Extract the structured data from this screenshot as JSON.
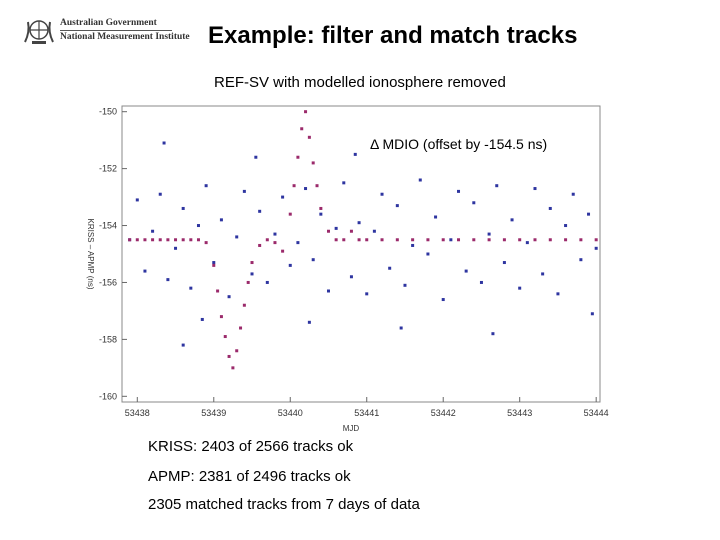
{
  "header": {
    "org_line1": "Australian Government",
    "org_line2": "National Measurement Institute",
    "title": "Example: filter and match tracks",
    "subtitle": "REF-SV with modelled ionosphere removed"
  },
  "chart_data": {
    "type": "scatter",
    "xlabel": "MJD",
    "ylabel": "KRISS – APMP (ns)",
    "annotation": "Δ MDIO (offset by -154.5 ns)",
    "xlim": [
      53437.8,
      53444.05
    ],
    "ylim": [
      -160.2,
      -149.8
    ],
    "xticks": [
      53438,
      53439,
      53440,
      53441,
      53442,
      53443,
      53444
    ],
    "xtick_labels": [
      "53438",
      "53439",
      "53440",
      "53441",
      "53442",
      "53443",
      "53444"
    ],
    "yticks": [
      -150,
      -152,
      -154,
      -156,
      -158,
      -160
    ],
    "ytick_labels": [
      "-150",
      "-152",
      "-154",
      "-156",
      "-158",
      "-160"
    ],
    "grid": false,
    "series": [
      {
        "color": "#2e35a0",
        "points": [
          [
            53437.9,
            -154.5
          ],
          [
            53438.0,
            -153.1
          ],
          [
            53438.1,
            -155.6
          ],
          [
            53438.2,
            -154.2
          ],
          [
            53438.3,
            -152.9
          ],
          [
            53438.4,
            -155.9
          ],
          [
            53438.5,
            -154.8
          ],
          [
            53438.6,
            -153.4
          ],
          [
            53438.7,
            -156.2
          ],
          [
            53438.8,
            -154.0
          ],
          [
            53438.9,
            -152.6
          ],
          [
            53439.0,
            -155.3
          ],
          [
            53439.1,
            -153.8
          ],
          [
            53439.2,
            -156.5
          ],
          [
            53439.3,
            -154.4
          ],
          [
            53439.4,
            -152.8
          ],
          [
            53439.5,
            -155.7
          ],
          [
            53439.6,
            -153.5
          ],
          [
            53439.7,
            -156.0
          ],
          [
            53439.8,
            -154.3
          ],
          [
            53439.9,
            -153.0
          ],
          [
            53440.0,
            -155.4
          ],
          [
            53440.1,
            -154.6
          ],
          [
            53440.2,
            -152.7
          ],
          [
            53440.3,
            -155.2
          ],
          [
            53440.4,
            -153.6
          ],
          [
            53440.5,
            -156.3
          ],
          [
            53440.6,
            -154.1
          ],
          [
            53440.7,
            -152.5
          ],
          [
            53440.8,
            -155.8
          ],
          [
            53440.9,
            -153.9
          ],
          [
            53441.0,
            -156.4
          ],
          [
            53441.1,
            -154.2
          ],
          [
            53441.2,
            -152.9
          ],
          [
            53441.3,
            -155.5
          ],
          [
            53441.4,
            -153.3
          ],
          [
            53441.5,
            -156.1
          ],
          [
            53441.6,
            -154.7
          ],
          [
            53441.7,
            -152.4
          ],
          [
            53441.8,
            -155.0
          ],
          [
            53441.9,
            -153.7
          ],
          [
            53442.0,
            -156.6
          ],
          [
            53442.1,
            -154.5
          ],
          [
            53442.2,
            -152.8
          ],
          [
            53442.3,
            -155.6
          ],
          [
            53442.4,
            -153.2
          ],
          [
            53442.5,
            -156.0
          ],
          [
            53442.6,
            -154.3
          ],
          [
            53442.7,
            -152.6
          ],
          [
            53442.8,
            -155.3
          ],
          [
            53442.9,
            -153.8
          ],
          [
            53443.0,
            -156.2
          ],
          [
            53443.1,
            -154.6
          ],
          [
            53443.2,
            -152.7
          ],
          [
            53443.3,
            -155.7
          ],
          [
            53443.4,
            -153.4
          ],
          [
            53443.5,
            -156.4
          ],
          [
            53443.6,
            -154.0
          ],
          [
            53443.7,
            -152.9
          ],
          [
            53443.8,
            -155.2
          ],
          [
            53443.9,
            -153.6
          ],
          [
            53444.0,
            -154.8
          ],
          [
            53438.35,
            -151.1
          ],
          [
            53438.85,
            -157.3
          ],
          [
            53439.55,
            -151.6
          ],
          [
            53440.25,
            -157.4
          ],
          [
            53440.85,
            -151.5
          ],
          [
            53441.45,
            -157.6
          ],
          [
            53442.15,
            -151.2
          ],
          [
            53442.65,
            -157.8
          ],
          [
            53443.35,
            -151.4
          ],
          [
            53443.95,
            -157.1
          ],
          [
            53438.6,
            -158.2
          ],
          [
            53441.9,
            -150.9
          ]
        ]
      },
      {
        "color": "#9b2a6b",
        "points": [
          [
            53437.9,
            -154.5
          ],
          [
            53438.0,
            -154.5
          ],
          [
            53438.1,
            -154.5
          ],
          [
            53438.2,
            -154.5
          ],
          [
            53438.3,
            -154.5
          ],
          [
            53438.4,
            -154.5
          ],
          [
            53438.5,
            -154.5
          ],
          [
            53438.6,
            -154.5
          ],
          [
            53438.7,
            -154.5
          ],
          [
            53438.8,
            -154.5
          ],
          [
            53438.9,
            -154.6
          ],
          [
            53439.0,
            -155.4
          ],
          [
            53439.05,
            -156.3
          ],
          [
            53439.1,
            -157.2
          ],
          [
            53439.15,
            -157.9
          ],
          [
            53439.2,
            -158.6
          ],
          [
            53439.25,
            -159.0
          ],
          [
            53439.3,
            -158.4
          ],
          [
            53439.35,
            -157.6
          ],
          [
            53439.4,
            -156.8
          ],
          [
            53439.45,
            -156.0
          ],
          [
            53439.5,
            -155.3
          ],
          [
            53439.6,
            -154.7
          ],
          [
            53439.7,
            -154.5
          ],
          [
            53439.8,
            -154.6
          ],
          [
            53439.9,
            -154.9
          ],
          [
            53440.0,
            -153.6
          ],
          [
            53440.05,
            -152.6
          ],
          [
            53440.1,
            -151.6
          ],
          [
            53440.15,
            -150.6
          ],
          [
            53440.2,
            -150.0
          ],
          [
            53440.25,
            -150.9
          ],
          [
            53440.3,
            -151.8
          ],
          [
            53440.35,
            -152.6
          ],
          [
            53440.4,
            -153.4
          ],
          [
            53440.5,
            -154.2
          ],
          [
            53440.6,
            -154.5
          ],
          [
            53440.7,
            -154.5
          ],
          [
            53440.8,
            -154.2
          ],
          [
            53440.9,
            -154.5
          ],
          [
            53441.0,
            -154.5
          ],
          [
            53441.2,
            -154.5
          ],
          [
            53441.4,
            -154.5
          ],
          [
            53441.6,
            -154.5
          ],
          [
            53441.8,
            -154.5
          ],
          [
            53442.0,
            -154.5
          ],
          [
            53442.2,
            -154.5
          ],
          [
            53442.4,
            -154.5
          ],
          [
            53442.6,
            -154.5
          ],
          [
            53442.8,
            -154.5
          ],
          [
            53443.0,
            -154.5
          ],
          [
            53443.2,
            -154.5
          ],
          [
            53443.4,
            -154.5
          ],
          [
            53443.6,
            -154.5
          ],
          [
            53443.8,
            -154.5
          ],
          [
            53444.0,
            -154.5
          ]
        ]
      }
    ]
  },
  "stats": {
    "kriss": "KRISS: 2403 of 2566 tracks ok",
    "apmp": "APMP:  2381 of 2496 tracks ok",
    "matched": "2305 matched tracks from 7 days of data"
  }
}
